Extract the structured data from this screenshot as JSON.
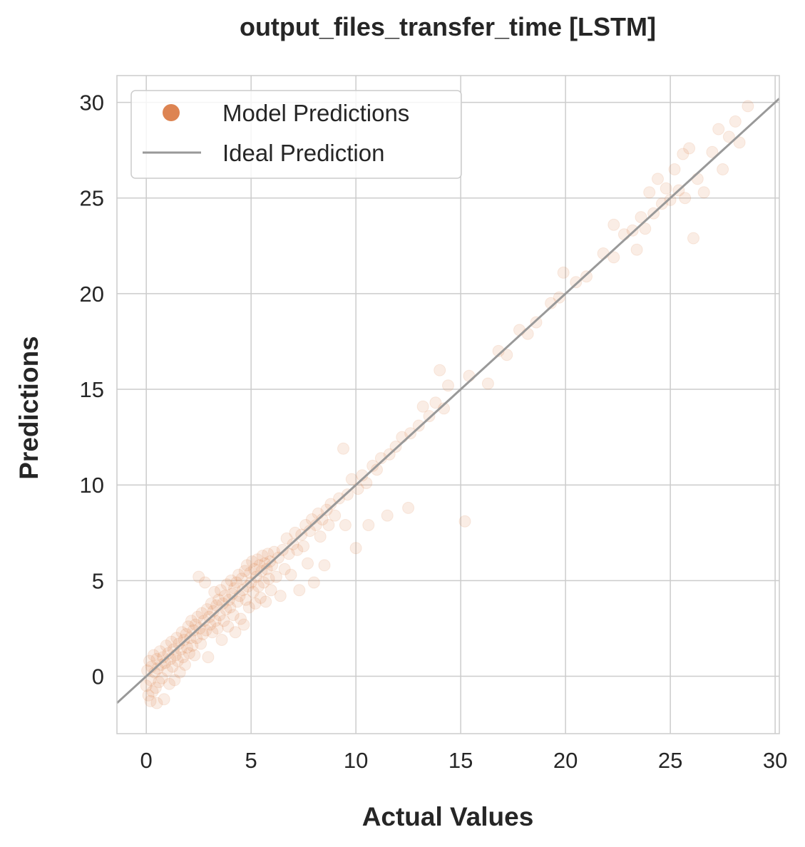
{
  "chart_data": {
    "type": "scatter",
    "title": "output_files_transfer_time [LSTM]",
    "xlabel": "Actual Values",
    "ylabel": "Predictions",
    "xlim": [
      -1.4,
      30.2
    ],
    "ylim": [
      -3.0,
      31.4
    ],
    "xticks": [
      "0",
      "5",
      "10",
      "15",
      "20",
      "25",
      "30"
    ],
    "yticks": [
      "0",
      "5",
      "10",
      "15",
      "20",
      "25",
      "30"
    ],
    "grid": true,
    "legend": {
      "placement": "top-left"
    },
    "series": [
      {
        "name": "Model Predictions",
        "kind": "scatter",
        "color": "#dd8452",
        "opacity": 0.15,
        "points": [
          [
            0.0,
            -0.5
          ],
          [
            0.05,
            0.3
          ],
          [
            0.1,
            -1.0
          ],
          [
            0.15,
            0.8
          ],
          [
            0.2,
            -0.2
          ],
          [
            0.2,
            -1.3
          ],
          [
            0.25,
            0.5
          ],
          [
            0.3,
            -0.8
          ],
          [
            0.35,
            1.1
          ],
          [
            0.4,
            0.2
          ],
          [
            0.45,
            -0.6
          ],
          [
            0.5,
            0.9
          ],
          [
            0.5,
            -1.4
          ],
          [
            0.55,
            0.4
          ],
          [
            0.6,
            -0.3
          ],
          [
            0.65,
            1.3
          ],
          [
            0.7,
            0.6
          ],
          [
            0.75,
            -0.1
          ],
          [
            0.8,
            1.0
          ],
          [
            0.85,
            -1.2
          ],
          [
            0.9,
            0.7
          ],
          [
            0.95,
            1.6
          ],
          [
            1.0,
            0.3
          ],
          [
            1.05,
            1.2
          ],
          [
            1.1,
            -0.4
          ],
          [
            1.15,
            0.9
          ],
          [
            1.2,
            1.8
          ],
          [
            1.25,
            0.5
          ],
          [
            1.3,
            1.4
          ],
          [
            1.35,
            -0.2
          ],
          [
            1.4,
            1.1
          ],
          [
            1.45,
            2.0
          ],
          [
            1.5,
            0.8
          ],
          [
            1.55,
            1.7
          ],
          [
            1.6,
            0.2
          ],
          [
            1.65,
            1.4
          ],
          [
            1.7,
            2.3
          ],
          [
            1.75,
            1.0
          ],
          [
            1.8,
            1.9
          ],
          [
            1.85,
            0.6
          ],
          [
            1.9,
            2.2
          ],
          [
            1.95,
            1.5
          ],
          [
            2.0,
            2.6
          ],
          [
            2.05,
            1.2
          ],
          [
            2.1,
            2.0
          ],
          [
            2.15,
            2.9
          ],
          [
            2.2,
            1.6
          ],
          [
            2.25,
            2.4
          ],
          [
            2.3,
            1.1
          ],
          [
            2.35,
            2.7
          ],
          [
            2.4,
            2.0
          ],
          [
            2.45,
            3.1
          ],
          [
            2.5,
            5.2
          ],
          [
            2.55,
            2.5
          ],
          [
            2.6,
            1.7
          ],
          [
            2.65,
            3.3
          ],
          [
            2.7,
            2.2
          ],
          [
            2.75,
            2.9
          ],
          [
            2.8,
            4.9
          ],
          [
            2.85,
            2.4
          ],
          [
            2.9,
            3.5
          ],
          [
            2.95,
            1.0
          ],
          [
            3.0,
            3.1
          ],
          [
            3.05,
            2.7
          ],
          [
            3.1,
            3.8
          ],
          [
            3.15,
            2.3
          ],
          [
            3.2,
            3.4
          ],
          [
            3.25,
            4.4
          ],
          [
            3.3,
            2.9
          ],
          [
            3.35,
            3.7
          ],
          [
            3.4,
            2.5
          ],
          [
            3.45,
            4.0
          ],
          [
            3.5,
            3.2
          ],
          [
            3.55,
            4.5
          ],
          [
            3.6,
            1.9
          ],
          [
            3.65,
            3.8
          ],
          [
            3.7,
            2.9
          ],
          [
            3.75,
            4.2
          ],
          [
            3.8,
            3.5
          ],
          [
            3.85,
            4.8
          ],
          [
            3.9,
            2.6
          ],
          [
            3.95,
            4.0
          ],
          [
            4.0,
            3.6
          ],
          [
            4.05,
            5.0
          ],
          [
            4.1,
            4.3
          ],
          [
            4.15,
            3.2
          ],
          [
            4.2,
            4.6
          ],
          [
            4.25,
            2.3
          ],
          [
            4.3,
            4.9
          ],
          [
            4.35,
            3.9
          ],
          [
            4.4,
            5.3
          ],
          [
            4.45,
            4.2
          ],
          [
            4.5,
            3.0
          ],
          [
            4.55,
            5.1
          ],
          [
            4.6,
            4.5
          ],
          [
            4.65,
            2.7
          ],
          [
            4.7,
            5.5
          ],
          [
            4.75,
            4.0
          ],
          [
            4.8,
            5.8
          ],
          [
            4.85,
            4.7
          ],
          [
            4.9,
            3.6
          ],
          [
            4.95,
            5.4
          ],
          [
            5.0,
            4.9
          ],
          [
            5.05,
            6.0
          ],
          [
            5.1,
            4.4
          ],
          [
            5.15,
            5.6
          ],
          [
            5.2,
            3.8
          ],
          [
            5.25,
            5.2
          ],
          [
            5.3,
            6.1
          ],
          [
            5.35,
            4.7
          ],
          [
            5.4,
            5.8
          ],
          [
            5.45,
            4.1
          ],
          [
            5.5,
            5.5
          ],
          [
            5.55,
            6.3
          ],
          [
            5.6,
            4.9
          ],
          [
            5.65,
            5.9
          ],
          [
            5.7,
            3.9
          ],
          [
            5.75,
            5.6
          ],
          [
            5.8,
            6.4
          ],
          [
            5.85,
            5.1
          ],
          [
            5.9,
            6.0
          ],
          [
            5.95,
            4.5
          ],
          [
            6.0,
            5.8
          ],
          [
            6.1,
            6.5
          ],
          [
            6.2,
            5.2
          ],
          [
            6.3,
            6.2
          ],
          [
            6.4,
            4.2
          ],
          [
            6.5,
            6.6
          ],
          [
            6.6,
            5.6
          ],
          [
            6.7,
            7.2
          ],
          [
            6.8,
            6.4
          ],
          [
            6.9,
            5.3
          ],
          [
            7.0,
            6.9
          ],
          [
            7.1,
            7.5
          ],
          [
            7.2,
            6.6
          ],
          [
            7.3,
            4.5
          ],
          [
            7.4,
            7.4
          ],
          [
            7.5,
            6.8
          ],
          [
            7.6,
            7.9
          ],
          [
            7.7,
            5.9
          ],
          [
            7.8,
            7.6
          ],
          [
            7.9,
            8.2
          ],
          [
            8.0,
            4.9
          ],
          [
            8.1,
            7.9
          ],
          [
            8.2,
            8.5
          ],
          [
            8.3,
            7.3
          ],
          [
            8.4,
            8.2
          ],
          [
            8.5,
            5.8
          ],
          [
            8.6,
            8.7
          ],
          [
            8.7,
            7.9
          ],
          [
            8.8,
            9.0
          ],
          [
            9.0,
            8.4
          ],
          [
            9.2,
            9.3
          ],
          [
            9.4,
            11.9
          ],
          [
            9.5,
            7.9
          ],
          [
            9.6,
            9.5
          ],
          [
            9.8,
            10.3
          ],
          [
            10.0,
            6.7
          ],
          [
            10.1,
            9.8
          ],
          [
            10.3,
            10.5
          ],
          [
            10.5,
            10.1
          ],
          [
            10.6,
            7.9
          ],
          [
            10.8,
            11.0
          ],
          [
            11.0,
            10.8
          ],
          [
            11.2,
            11.4
          ],
          [
            11.5,
            8.4
          ],
          [
            11.6,
            11.6
          ],
          [
            11.9,
            12.0
          ],
          [
            12.2,
            12.5
          ],
          [
            12.5,
            8.8
          ],
          [
            12.6,
            12.7
          ],
          [
            13.0,
            13.1
          ],
          [
            13.2,
            14.1
          ],
          [
            13.5,
            13.6
          ],
          [
            13.8,
            14.3
          ],
          [
            14.0,
            16.0
          ],
          [
            14.2,
            14.0
          ],
          [
            14.4,
            15.2
          ],
          [
            15.2,
            8.1
          ],
          [
            15.4,
            15.7
          ],
          [
            16.3,
            15.3
          ],
          [
            16.8,
            17.0
          ],
          [
            17.2,
            16.8
          ],
          [
            17.8,
            18.1
          ],
          [
            18.2,
            17.9
          ],
          [
            18.6,
            18.5
          ],
          [
            19.3,
            19.5
          ],
          [
            19.7,
            19.8
          ],
          [
            19.9,
            21.1
          ],
          [
            20.5,
            20.6
          ],
          [
            21.0,
            20.9
          ],
          [
            21.8,
            22.1
          ],
          [
            22.3,
            21.9
          ],
          [
            22.3,
            23.6
          ],
          [
            22.8,
            23.1
          ],
          [
            23.2,
            23.3
          ],
          [
            23.4,
            22.3
          ],
          [
            23.6,
            24.0
          ],
          [
            23.8,
            23.4
          ],
          [
            24.0,
            25.3
          ],
          [
            24.2,
            24.2
          ],
          [
            24.4,
            26.0
          ],
          [
            24.6,
            24.7
          ],
          [
            24.8,
            25.5
          ],
          [
            25.0,
            24.9
          ],
          [
            25.2,
            26.5
          ],
          [
            25.4,
            25.4
          ],
          [
            25.6,
            27.3
          ],
          [
            25.7,
            25.0
          ],
          [
            25.9,
            27.6
          ],
          [
            26.1,
            22.9
          ],
          [
            26.3,
            26.0
          ],
          [
            26.6,
            25.3
          ],
          [
            27.0,
            27.4
          ],
          [
            27.3,
            28.6
          ],
          [
            27.5,
            26.5
          ],
          [
            27.8,
            28.2
          ],
          [
            28.1,
            29.0
          ],
          [
            28.3,
            27.9
          ],
          [
            28.7,
            29.8
          ]
        ]
      },
      {
        "name": "Ideal Prediction",
        "kind": "line",
        "color": "#999999",
        "x": [
          -1.4,
          30.2
        ],
        "y": [
          -1.4,
          30.2
        ]
      }
    ]
  }
}
